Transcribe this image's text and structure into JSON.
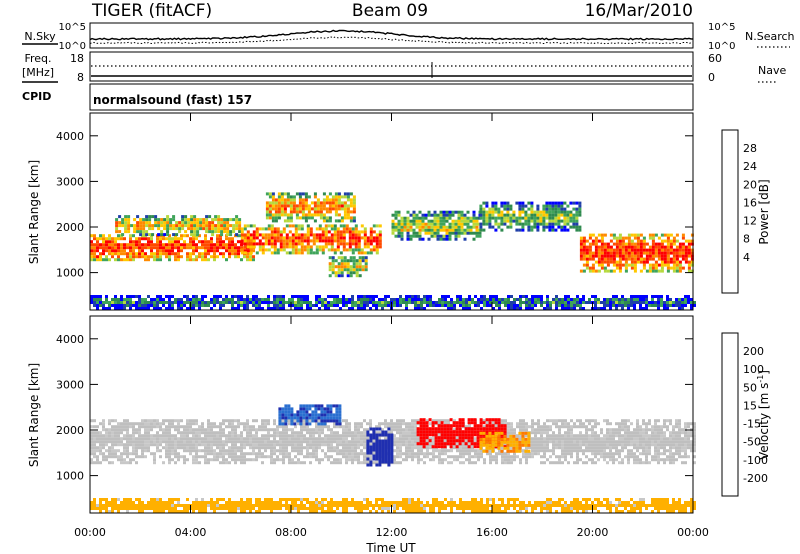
{
  "header": {
    "radar": "TIGER (fitACF)",
    "beam": "Beam 09",
    "date": "16/Mar/2010"
  },
  "strips": {
    "nsky": {
      "label": "N.Sky",
      "ticks": [
        "10^5",
        "10^0"
      ],
      "right_label": "N.Search",
      "right_ticks": [
        "10^5",
        "10^0"
      ]
    },
    "freq": {
      "label_line1": "Freq.",
      "label_line2": "[MHz]",
      "ticks": [
        "18",
        "8"
      ],
      "right_label": "Nave",
      "right_ticks": [
        "60",
        "0"
      ]
    },
    "cpid": {
      "label": "CPID",
      "value": "normalsound (fast) 157"
    }
  },
  "colors": {
    "power": [
      "#0000ff",
      "#1f3fa8",
      "#2f8a4f",
      "#3fa45a",
      "#b6d93e",
      "#ffc800",
      "#ff8a00",
      "#ff4a00",
      "#ff0000"
    ],
    "velocity": [
      "#1f2fb0",
      "#2a6fd0",
      "#2faa3f",
      "#8ccc3f",
      "#c8c8c8",
      "#ffb000",
      "#ff7a00",
      "#ff3a00",
      "#ff0000"
    ],
    "ground_scatter": "#bfbfbf"
  },
  "chart_data": [
    {
      "type": "heatmap",
      "name": "power",
      "ylabel": "Slant Range [km]",
      "yticks": [
        "4000",
        "3000",
        "2000",
        "1000"
      ],
      "ylim": [
        180,
        4500
      ],
      "xlim": [
        "00:00",
        "24:00"
      ],
      "colorbar": {
        "label": "Power [dB]",
        "ticks": [
          "28",
          "24",
          "20",
          "16",
          "12",
          "8",
          "4"
        ],
        "range": [
          0,
          32
        ]
      },
      "bands": [
        {
          "t0": 0.0,
          "t1": 6.5,
          "r0": 1250,
          "r1": 1800,
          "level": 28
        },
        {
          "t0": 1.0,
          "t1": 6.0,
          "r0": 1800,
          "r1": 2200,
          "level": 20
        },
        {
          "t0": 6.0,
          "t1": 11.5,
          "r0": 1400,
          "r1": 2000,
          "level": 26
        },
        {
          "t0": 7.0,
          "t1": 10.5,
          "r0": 2100,
          "r1": 2700,
          "level": 22
        },
        {
          "t0": 9.5,
          "t1": 11.0,
          "r0": 900,
          "r1": 1300,
          "level": 18
        },
        {
          "t0": 12.0,
          "t1": 15.5,
          "r0": 1700,
          "r1": 2300,
          "level": 16
        },
        {
          "t0": 15.5,
          "t1": 19.5,
          "r0": 1900,
          "r1": 2500,
          "level": 14
        },
        {
          "t0": 19.5,
          "t1": 24.0,
          "r0": 1000,
          "r1": 1800,
          "level": 28
        },
        {
          "t0": 0.0,
          "t1": 24.0,
          "r0": 180,
          "r1": 450,
          "level": 8
        }
      ]
    },
    {
      "type": "heatmap",
      "name": "velocity",
      "ylabel": "Slant Range [km]",
      "yticks": [
        "4000",
        "3000",
        "2000",
        "1000"
      ],
      "ylim": [
        180,
        4500
      ],
      "xlim": [
        "00:00",
        "24:00"
      ],
      "xticks": [
        "00:00",
        "04:00",
        "08:00",
        "12:00",
        "16:00",
        "20:00",
        "00:00"
      ],
      "xlabel": "Time UT",
      "colorbar": {
        "label": "Velocity [m s",
        "label_sup": "-1",
        "label_end": "]",
        "ticks": [
          "200",
          "100",
          "50",
          "15",
          "-15",
          "-50",
          "-100",
          "-200"
        ]
      },
      "bands": [
        {
          "t0": 0.0,
          "t1": 24.0,
          "r0": 1250,
          "r1": 2200,
          "level": 0
        },
        {
          "t0": 7.5,
          "t1": 10.0,
          "r0": 2100,
          "r1": 2500,
          "level": 150
        },
        {
          "t0": 11.0,
          "t1": 12.0,
          "r0": 1200,
          "r1": 2000,
          "level": 180
        },
        {
          "t0": 13.0,
          "t1": 16.5,
          "r0": 1600,
          "r1": 2200,
          "level": -200
        },
        {
          "t0": 15.5,
          "t1": 17.5,
          "r0": 1500,
          "r1": 1900,
          "level": -60
        },
        {
          "t0": 0.0,
          "t1": 24.0,
          "r0": 180,
          "r1": 450,
          "level": -40
        }
      ]
    }
  ]
}
